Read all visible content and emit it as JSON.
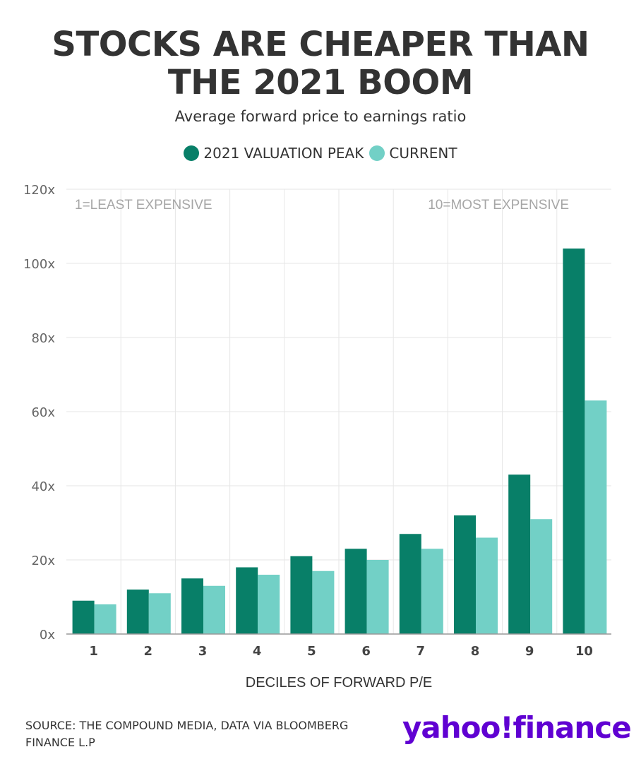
{
  "header": {
    "title_line1": "STOCKS ARE CHEAPER THAN",
    "title_line2": "THE 2021 BOOM",
    "subtitle": "Average forward price to earnings ratio"
  },
  "legend": {
    "items": [
      {
        "label": "2021 VALUATION PEAK",
        "color": "#087f68"
      },
      {
        "label": "CURRENT",
        "color": "#72d0c6"
      }
    ]
  },
  "chart_data": {
    "type": "bar",
    "categories": [
      "1",
      "2",
      "3",
      "4",
      "5",
      "6",
      "7",
      "8",
      "9",
      "10"
    ],
    "series": [
      {
        "name": "2021 VALUATION PEAK",
        "color": "#087f68",
        "values": [
          9,
          12,
          15,
          18,
          21,
          23,
          27,
          32,
          43,
          104
        ]
      },
      {
        "name": "CURRENT",
        "color": "#72d0c6",
        "values": [
          8,
          11,
          13,
          16,
          17,
          20,
          23,
          26,
          31,
          63
        ]
      }
    ],
    "ylim": [
      0,
      120
    ],
    "yticks": [
      0,
      20,
      40,
      60,
      80,
      100,
      120
    ],
    "ytick_suffix": "x",
    "xlabel": "DECILES OF FORWARD P/E",
    "ylabel": "",
    "grid": true,
    "annotations": {
      "left": "1=LEAST EXPENSIVE",
      "right": "10=MOST EXPENSIVE"
    }
  },
  "footer": {
    "source_line1": "SOURCE: THE COMPOUND MEDIA, DATA VIA BLOOMBERG",
    "source_line2": "FINANCE L.P",
    "logo": "yahoo!finance"
  }
}
